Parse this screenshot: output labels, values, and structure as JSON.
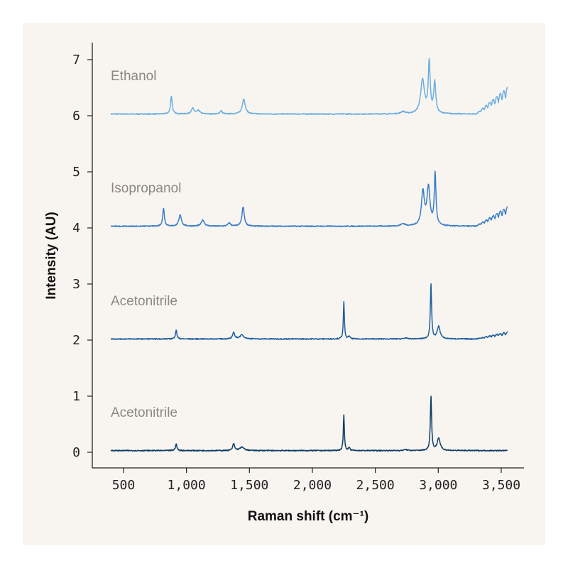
{
  "chart_data": {
    "type": "line",
    "title": "",
    "xlabel": "Raman shift (cm⁻¹)",
    "ylabel": "Intensity (AU)",
    "xlim": [
      270,
      3690
    ],
    "ylim": [
      -0.3,
      7.3
    ],
    "xticks": [
      500,
      1000,
      1500,
      2000,
      2500,
      3000,
      3500
    ],
    "xtick_labels": [
      "500",
      "1,000",
      "1,500",
      "2,000",
      "2,500",
      "3,000",
      "3,500"
    ],
    "yticks": [
      0,
      1,
      2,
      3,
      4,
      5,
      6,
      7
    ],
    "ytick_labels": [
      "0",
      "1",
      "2",
      "3",
      "4",
      "5",
      "6",
      "7"
    ],
    "x_range": [
      400,
      3550
    ],
    "grid": false,
    "legend": "none (inline labels above each spectrum)",
    "series": [
      {
        "name": "Ethanol",
        "color": "#6aaee2",
        "baseline": 6.03,
        "peaks": [
          [
            880,
            0.32,
            8
          ],
          [
            1050,
            0.1,
            14
          ],
          [
            1095,
            0.06,
            14
          ],
          [
            1275,
            0.06,
            10
          ],
          [
            1455,
            0.27,
            14
          ],
          [
            2720,
            0.04,
            20
          ],
          [
            2875,
            0.6,
            18
          ],
          [
            2928,
            0.9,
            9
          ],
          [
            2972,
            0.55,
            10
          ]
        ],
        "tail": 0.38
      },
      {
        "name": "Isopropanol",
        "color": "#3a7dc6",
        "baseline": 4.03,
        "peaks": [
          [
            818,
            0.32,
            8
          ],
          [
            950,
            0.2,
            12
          ],
          [
            1130,
            0.11,
            14
          ],
          [
            1340,
            0.06,
            12
          ],
          [
            1450,
            0.34,
            11
          ],
          [
            2720,
            0.04,
            20
          ],
          [
            2878,
            0.6,
            14
          ],
          [
            2922,
            0.68,
            14
          ],
          [
            2975,
            0.93,
            8
          ]
        ],
        "tail": 0.28
      },
      {
        "name": "Acetonitrile",
        "color": "#1f5e9f",
        "baseline": 2.02,
        "peaks": [
          [
            918,
            0.16,
            7
          ],
          [
            1375,
            0.12,
            9
          ],
          [
            1440,
            0.07,
            20
          ],
          [
            2250,
            0.66,
            5
          ],
          [
            2292,
            0.05,
            7
          ],
          [
            2740,
            0.02,
            12
          ],
          [
            2942,
            0.97,
            6
          ],
          [
            3003,
            0.22,
            14
          ]
        ],
        "tail": 0.1
      },
      {
        "name": "Acetonitrile",
        "color": "#0e3d66",
        "baseline": 0.03,
        "peaks": [
          [
            918,
            0.12,
            7
          ],
          [
            1375,
            0.12,
            9
          ],
          [
            1440,
            0.06,
            20
          ],
          [
            2250,
            0.64,
            5
          ],
          [
            2292,
            0.05,
            7
          ],
          [
            2740,
            0.02,
            12
          ],
          [
            2942,
            0.97,
            6
          ],
          [
            3003,
            0.22,
            14
          ]
        ],
        "tail": 0.0
      }
    ]
  }
}
